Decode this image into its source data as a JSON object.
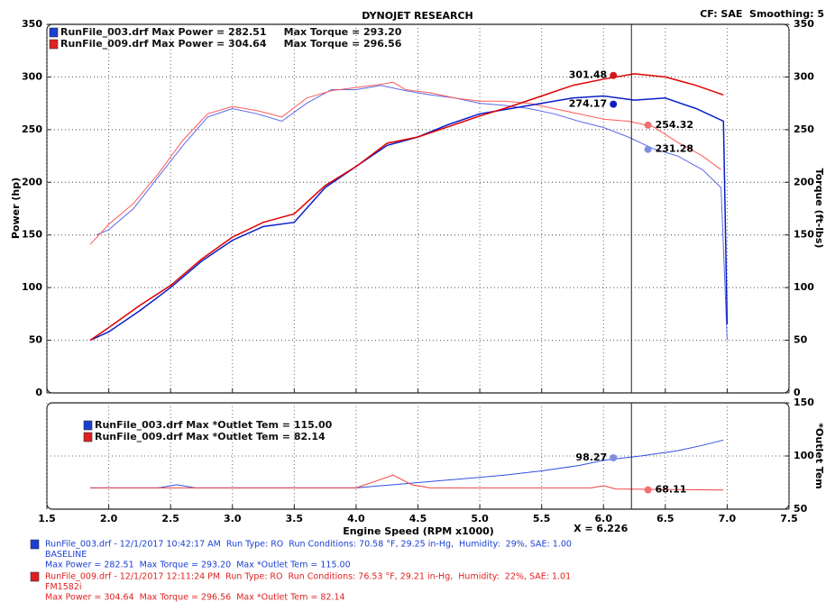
{
  "header": {
    "title": "DYNOJET RESEARCH",
    "settings": "CF: SAE  Smoothing: 5"
  },
  "cursor": {
    "value": 6.226,
    "label": "X = 6.226"
  },
  "chart_data": [
    {
      "type": "line",
      "ylabel": "Power (hp)",
      "y2label": "Torque (ft-lbs)",
      "xlim": [
        1.5,
        7.5
      ],
      "xticks": [
        1.5,
        {
          "value": 2,
          "label": "2.0"
        },
        2.5,
        {
          "value": 3,
          "label": "3.0"
        },
        3.5,
        {
          "value": 4,
          "label": "4.0"
        },
        4.5,
        {
          "value": 5,
          "label": "5.0"
        },
        5.5,
        {
          "value": 6,
          "label": "6.0"
        },
        6.5,
        {
          "value": 7,
          "label": "7.0"
        },
        7.5
      ],
      "ylim": [
        0,
        350
      ],
      "yticks": [
        0,
        50,
        100,
        150,
        200,
        250,
        300,
        350
      ],
      "y2lim": [
        0,
        350
      ],
      "y2ticks": [
        0,
        50,
        100,
        150,
        200,
        250,
        300,
        350
      ],
      "grid": true,
      "legend": [
        {
          "text": "RunFile_003.drf Max Power = 282.51     Max Torque = 293.20",
          "color": "#1a3fd0"
        },
        {
          "text": "RunFile_009.drf Max Power = 304.64     Max Torque = 296.56",
          "color": "#e02020"
        }
      ],
      "series": [
        {
          "color": "#5a6ae8",
          "axis": "y",
          "x": [
            1.9,
            2.0,
            2.2,
            2.4,
            2.6,
            2.8,
            3.0,
            3.2,
            3.4,
            3.6,
            3.8,
            4.0,
            4.2,
            4.4,
            4.6,
            4.8,
            5.0,
            5.2,
            5.4,
            5.6,
            5.8,
            6.0,
            6.2,
            6.4,
            6.6,
            6.8,
            6.95,
            7.0
          ],
          "values": [
            150,
            155,
            175,
            205,
            235,
            262,
            270,
            265,
            258,
            275,
            288,
            288,
            292,
            287,
            283,
            280,
            275,
            273,
            270,
            265,
            258,
            252,
            243,
            232,
            225,
            212,
            195,
            50
          ]
        },
        {
          "color": "#ff5a5a",
          "axis": "y",
          "x": [
            1.85,
            2.0,
            2.2,
            2.4,
            2.6,
            2.8,
            3.0,
            3.2,
            3.4,
            3.6,
            3.8,
            4.0,
            4.2,
            4.3,
            4.4,
            4.6,
            4.8,
            5.0,
            5.2,
            5.4,
            5.6,
            5.8,
            6.0,
            6.2,
            6.4,
            6.6,
            6.8,
            6.95
          ],
          "values": [
            141,
            160,
            180,
            208,
            240,
            265,
            272,
            268,
            262,
            280,
            287,
            290,
            293,
            295,
            288,
            285,
            280,
            277,
            277,
            275,
            270,
            265,
            260,
            258,
            253,
            238,
            225,
            212
          ]
        },
        {
          "color": "#0a1ec8",
          "axis": "y2",
          "x": [
            1.85,
            2.0,
            2.25,
            2.5,
            2.75,
            3.0,
            3.25,
            3.5,
            3.75,
            4.0,
            4.25,
            4.5,
            4.75,
            5.0,
            5.25,
            5.5,
            5.75,
            6.0,
            6.25,
            6.5,
            6.75,
            6.97,
            7.0
          ],
          "values": [
            50,
            58,
            78,
            100,
            125,
            145,
            158,
            162,
            195,
            215,
            235,
            243,
            255,
            265,
            270,
            275,
            280,
            282,
            278,
            280,
            270,
            258,
            65
          ]
        },
        {
          "color": "#e00000",
          "axis": "y2",
          "x": [
            1.85,
            2.0,
            2.25,
            2.5,
            2.75,
            3.0,
            3.25,
            3.5,
            3.75,
            4.0,
            4.25,
            4.5,
            4.75,
            5.0,
            5.25,
            5.5,
            5.75,
            6.0,
            6.25,
            6.5,
            6.75,
            6.97
          ],
          "values": [
            50,
            62,
            83,
            102,
            127,
            148,
            162,
            170,
            197,
            215,
            237,
            243,
            253,
            263,
            272,
            282,
            292,
            298,
            303,
            300,
            292,
            283
          ]
        }
      ],
      "annotations": [
        {
          "x": 6.08,
          "y": 301.48,
          "color": "#d81818",
          "side": "left",
          "axis": "y2"
        },
        {
          "x": 6.08,
          "y": 274.17,
          "color": "#1020c0",
          "side": "left",
          "axis": "y2"
        },
        {
          "x": 6.36,
          "y": 254.32,
          "color": "#f07070",
          "side": "right",
          "axis": "y"
        },
        {
          "x": 6.36,
          "y": 231.28,
          "color": "#7f8fe0",
          "side": "right",
          "axis": "y"
        }
      ]
    },
    {
      "type": "line",
      "xlabel": "Engine Speed (RPM x1000)",
      "y2label": "*Outlet Tem",
      "xlim": [
        1.5,
        7.5
      ],
      "xticks": [
        1.5,
        {
          "value": 2,
          "label": "2.0"
        },
        2.5,
        {
          "value": 3,
          "label": "3.0"
        },
        3.5,
        {
          "value": 4,
          "label": "4.0"
        },
        4.5,
        {
          "value": 5,
          "label": "5.0"
        },
        5.5,
        {
          "value": 6,
          "label": "6.0"
        },
        6.5,
        {
          "value": 7,
          "label": "7.0"
        },
        7.5
      ],
      "y2lim": [
        50,
        150
      ],
      "y2ticks": [
        50,
        100,
        150
      ],
      "grid": true,
      "legend": [
        {
          "text": "RunFile_003.drf Max *Outlet Tem = 115.00",
          "color": "#1a3fd0"
        },
        {
          "text": "RunFile_009.drf Max *Outlet Tem = 82.14",
          "color": "#e02020"
        }
      ],
      "series": [
        {
          "color": "#3050e0",
          "axis": "y2",
          "x": [
            1.85,
            2.4,
            2.55,
            2.7,
            4.0,
            4.2,
            4.5,
            4.8,
            5.2,
            5.5,
            5.8,
            6.0,
            6.3,
            6.6,
            6.8,
            6.97
          ],
          "values": [
            70,
            70,
            73,
            70,
            70,
            72,
            75,
            78,
            82,
            86,
            91,
            96,
            100,
            105,
            110,
            115
          ]
        },
        {
          "color": "#f04040",
          "axis": "y2",
          "x": [
            1.85,
            4.0,
            4.15,
            4.3,
            4.45,
            4.6,
            5.9,
            6.0,
            6.1,
            6.97
          ],
          "values": [
            70,
            70,
            76,
            82,
            73,
            70,
            70,
            72,
            69,
            68
          ]
        }
      ],
      "annotations": [
        {
          "x": 6.08,
          "y": 98.27,
          "color": "#7f8fe0",
          "side": "left",
          "axis": "y2"
        },
        {
          "x": 6.36,
          "y": 68.11,
          "color": "#f07070",
          "side": "right",
          "axis": "y2"
        }
      ]
    }
  ],
  "footer": [
    {
      "color": "#1a3fd0",
      "lines": [
        "RunFile_003.drf - 12/1/2017 10:42:17 AM  Run Type: RO  Run Conditions: 70.58 °F, 29.25 in-Hg,  Humidity:  29%, SAE: 1.00",
        "BASELINE",
        "Max Power = 282.51  Max Torque = 293.20  Max *Outlet Tem = 115.00"
      ]
    },
    {
      "color": "#e02020",
      "lines": [
        "RunFile_009.drf - 12/1/2017 12:11:24 PM  Run Type: RO  Run Conditions: 76.53 °F, 29.21 in-Hg,  Humidity:  22%, SAE: 1.01",
        "FM1582i",
        "Max Power = 304.64  Max Torque = 296.56  Max *Outlet Tem = 82.14"
      ]
    }
  ]
}
